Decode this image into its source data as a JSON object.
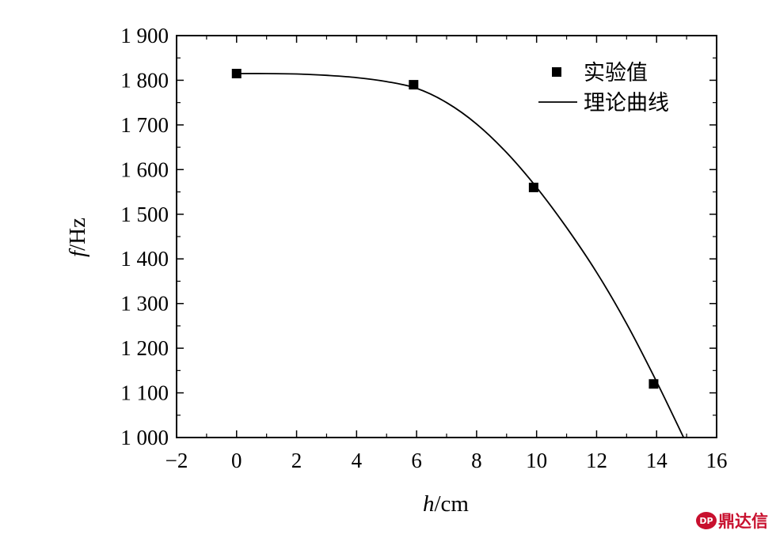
{
  "chart_data": {
    "type": "line",
    "title": "",
    "xlabel": {
      "var": "h",
      "unit": "/cm"
    },
    "ylabel": {
      "var": "f",
      "unit": "/Hz"
    },
    "xlim": [
      -2,
      16
    ],
    "ylim": [
      1000,
      1900
    ],
    "x_ticks": [
      -2,
      0,
      2,
      4,
      6,
      8,
      10,
      12,
      14,
      16
    ],
    "x_tick_labels": [
      "−2",
      "0",
      "2",
      "4",
      "6",
      "8",
      "10",
      "12",
      "14",
      "16"
    ],
    "y_ticks": [
      1000,
      1100,
      1200,
      1300,
      1400,
      1500,
      1600,
      1700,
      1800,
      1900
    ],
    "y_tick_labels": [
      "1 000",
      "1 100",
      "1 200",
      "1 300",
      "1 400",
      "1 500",
      "1 600",
      "1 700",
      "1 800",
      "1 900"
    ],
    "grid": false,
    "legend_position": "top-right",
    "series": [
      {
        "name": "实验值",
        "kind": "scatter",
        "marker": "square",
        "x": [
          0,
          5.9,
          9.9,
          13.9
        ],
        "y": [
          1815,
          1790,
          1560,
          1120
        ]
      },
      {
        "name": "理论曲线",
        "kind": "line",
        "x": [
          0,
          1,
          2,
          3,
          4,
          5,
          6,
          7,
          8,
          9,
          10,
          11,
          12,
          13,
          14,
          14.9
        ],
        "y": [
          1815,
          1815,
          1814,
          1811,
          1806,
          1797,
          1782,
          1750,
          1702,
          1638,
          1560,
          1470,
          1370,
          1255,
          1125,
          1000
        ]
      }
    ]
  },
  "watermark": {
    "text": "鼎达信",
    "badge": "DP",
    "color": "#c8102e"
  }
}
